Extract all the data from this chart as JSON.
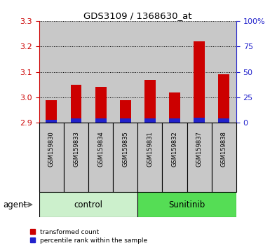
{
  "title": "GDS3109 / 1368630_at",
  "samples": [
    "GSM159830",
    "GSM159833",
    "GSM159834",
    "GSM159835",
    "GSM159831",
    "GSM159832",
    "GSM159837",
    "GSM159838"
  ],
  "groups": [
    "control",
    "control",
    "control",
    "control",
    "Sunitinib",
    "Sunitinib",
    "Sunitinib",
    "Sunitinib"
  ],
  "transformed_count": [
    2.99,
    3.05,
    3.04,
    2.99,
    3.07,
    3.02,
    3.22,
    3.09
  ],
  "percentile_rank_pct": [
    3.0,
    4.0,
    4.0,
    4.0,
    4.0,
    4.0,
    5.0,
    4.0
  ],
  "y_min": 2.9,
  "y_max": 3.3,
  "y_ticks": [
    2.9,
    3.0,
    3.1,
    3.2,
    3.3
  ],
  "y2_ticks": [
    0,
    25,
    50,
    75,
    100
  ],
  "bar_color_red": "#cc0000",
  "bar_color_blue": "#2222cc",
  "control_bg": "#ccf0cc",
  "sunitinib_bg": "#55dd55",
  "sample_box_bg": "#c8c8c8",
  "plot_bg": "#ffffff",
  "axis_left_color": "#cc0000",
  "axis_right_color": "#2222cc",
  "legend_red": "transformed count",
  "legend_blue": "percentile rank within the sample",
  "xlabel_agent": "agent",
  "bar_width": 0.45
}
